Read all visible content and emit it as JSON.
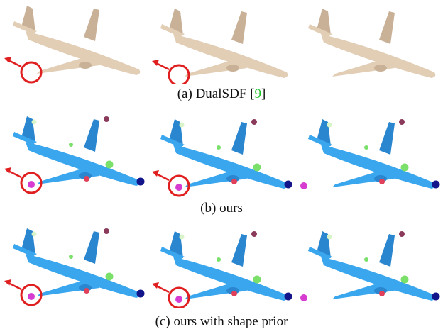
{
  "figure": {
    "rows": [
      {
        "caption_prefix": "(a) DualSDF [",
        "cite_number": "9",
        "caption_suffix": "]",
        "style": "tan",
        "panels": [
          {
            "indicator": true
          },
          {
            "indicator": true
          },
          {
            "indicator": false
          }
        ]
      },
      {
        "caption": "(b) ours",
        "style": "blue",
        "panels": [
          {
            "indicator": true
          },
          {
            "indicator": true
          },
          {
            "indicator": false
          }
        ]
      },
      {
        "caption": "(c) ours with shape prior",
        "style": "blue",
        "panels": [
          {
            "indicator": true
          },
          {
            "indicator": true
          },
          {
            "indicator": false
          }
        ]
      }
    ],
    "colors": {
      "tan_body": "#e2cdb5",
      "tan_shade": "#c9b197",
      "blue_body": "#3aa6ee",
      "blue_shade": "#2a86cf",
      "magenta": "#d63cd0",
      "navy": "#12148a",
      "green": "#7ae06a",
      "maroon": "#8a3a5a",
      "pink_red": "#e0405a",
      "pale": "#d8f4c8",
      "circle_red": "#e02020",
      "cite_green": "#22c22a"
    }
  }
}
